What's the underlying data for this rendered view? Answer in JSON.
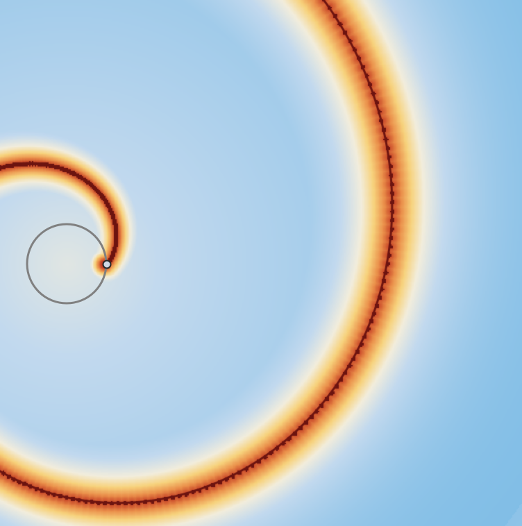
{
  "visualization": {
    "kind": "spiral-wave-field",
    "text": "",
    "palette": {
      "far": "#7fbde6",
      "mid": "#c2d9ee",
      "cream": "#f2eddc",
      "yellow": "#f7d27c",
      "orange": "#ea8f4a",
      "red": "#c23a22",
      "dark": "#6d1410"
    }
  },
  "overlay": {
    "orbit_circle_color": "#808080",
    "tip_marker_fill": "#cfd8e6",
    "tip_marker_stroke": "#2a2a2a"
  }
}
